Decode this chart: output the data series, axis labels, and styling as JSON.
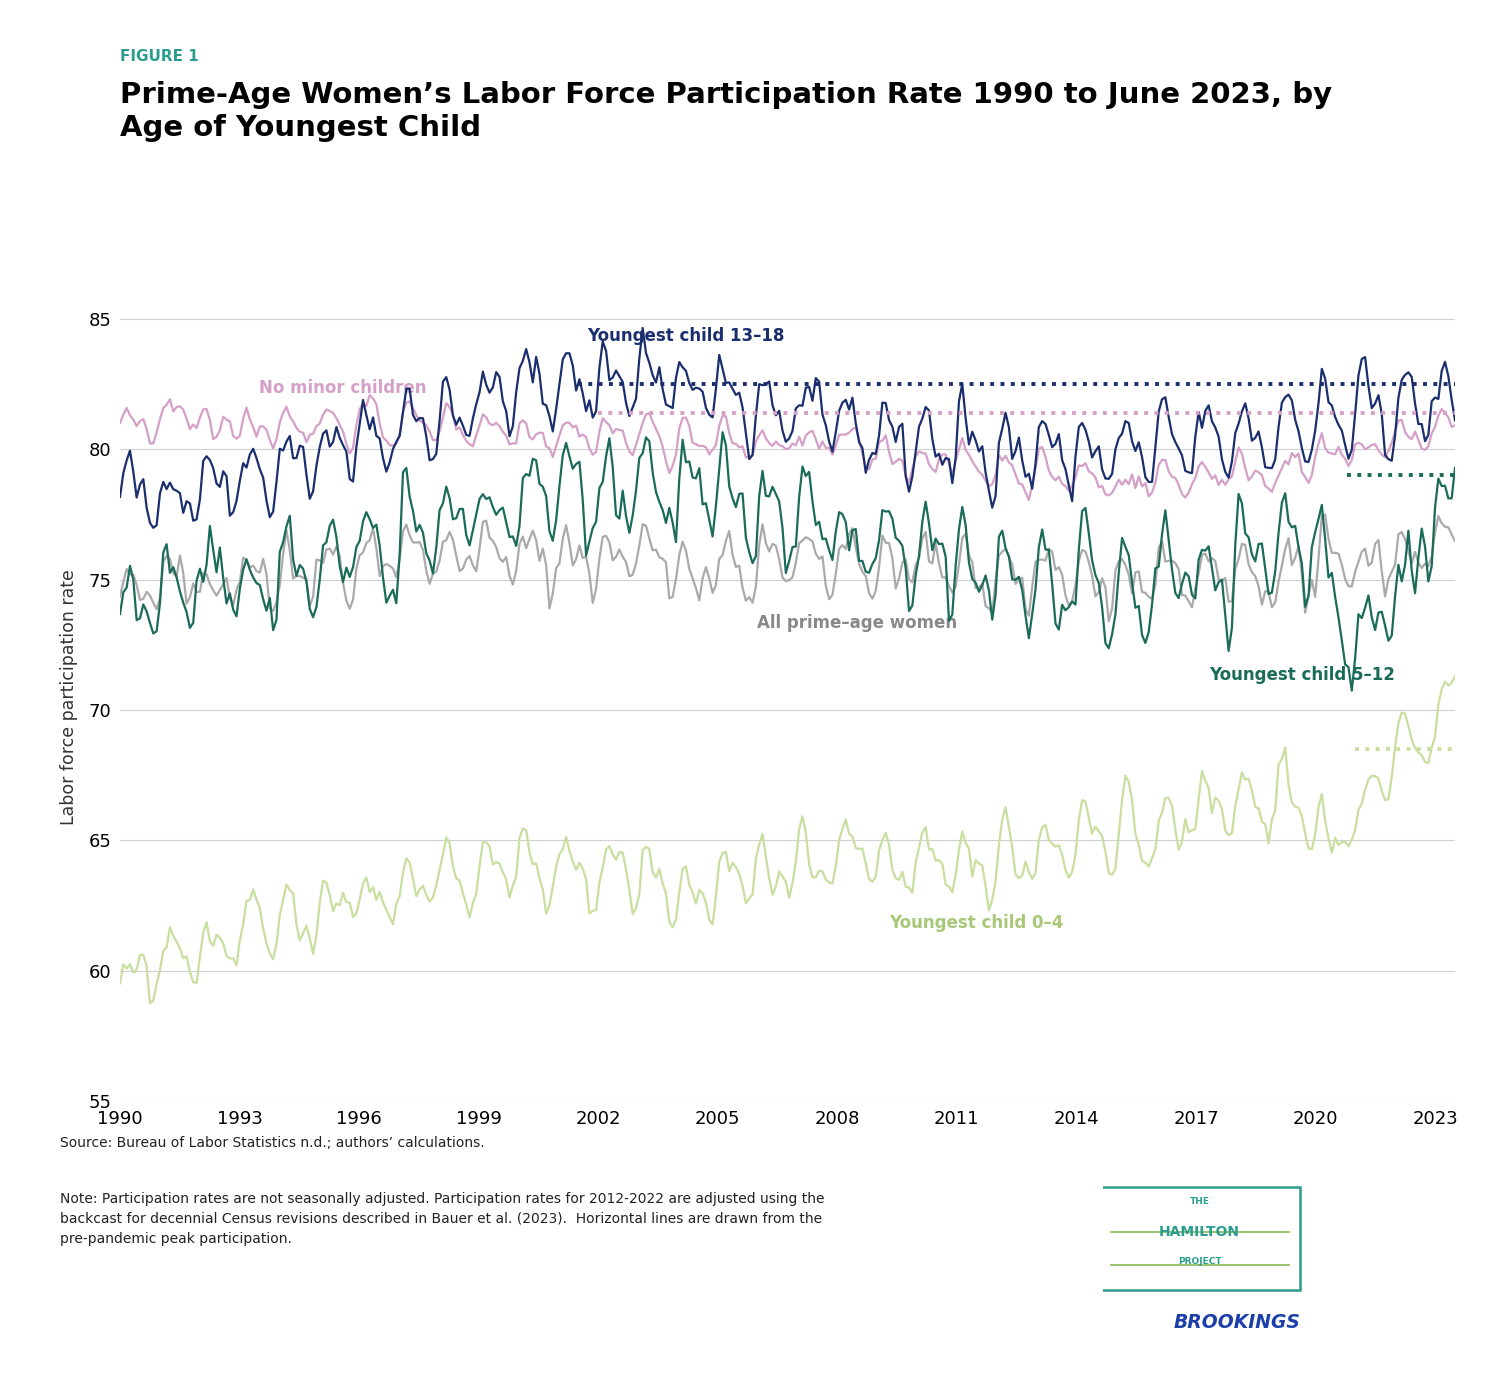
{
  "title_label": "FIGURE 1",
  "title": "Prime-Age Women’s Labor Force Participation Rate 1990 to June 2023, by\nAge of Youngest Child",
  "ylabel": "Labor force participation rate",
  "ylim": [
    55,
    86
  ],
  "yticks": [
    55,
    60,
    65,
    70,
    75,
    80,
    85
  ],
  "xtick_years": [
    1990,
    1993,
    1996,
    1999,
    2002,
    2005,
    2008,
    2011,
    2014,
    2017,
    2020,
    2023
  ],
  "source_text": "Source: Bureau of Labor Statistics n.d.; authors’ calculations.",
  "note_text": "Note: Participation rates are not seasonally adjusted. Participation rates for 2012-2022 are adjusted using the\nbackcast for decennial Census revisions described in Bauer et al. (2023).  Horizontal lines are drawn from the\npre-pandemic peak participation.",
  "colors": {
    "child_13_18": "#1a2e6e",
    "no_minor": "#d4a0c8",
    "all_prime": "#aaaaaa",
    "child_5_12": "#1a6b5a",
    "child_0_4": "#c8dfa0",
    "figure_label": "#2a9d8f",
    "title_color": "#000000"
  },
  "dot_line_13_18_start": 2001.5,
  "dot_line_13_18_val": 82.5,
  "dot_line_no_minor_start": 2002.0,
  "dot_line_no_minor_val": 81.4,
  "dot_line_5_12_start": 2020.8,
  "dot_line_5_12_val": 79.0,
  "dot_line_0_4_start": 2021.0,
  "dot_line_0_4_val": 68.5
}
